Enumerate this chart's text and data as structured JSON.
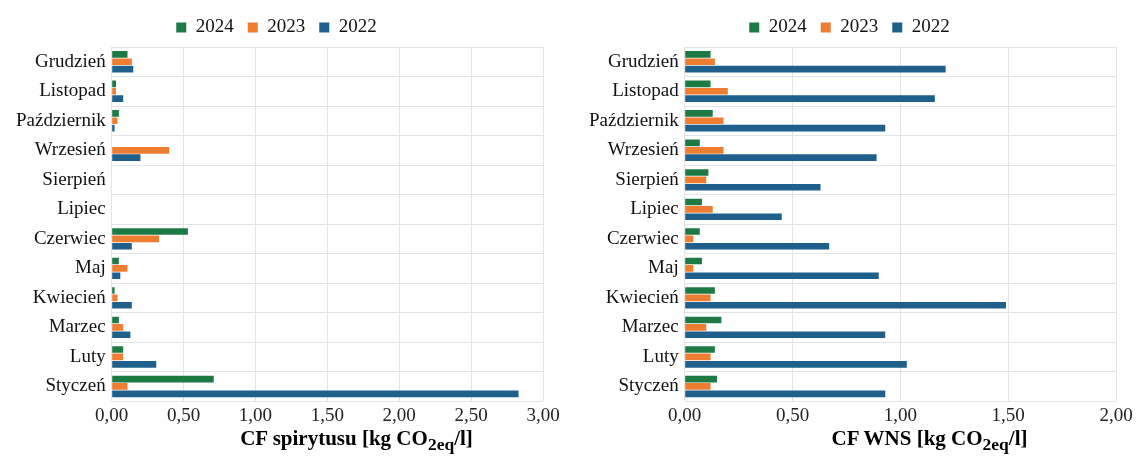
{
  "chart_data": [
    {
      "type": "bar",
      "orientation": "horizontal",
      "xlabel": "CF spirytusu [kg CO$_{2eq}$/l]",
      "categories": [
        "Grudzień",
        "Listopad",
        "Październik",
        "Wrzesień",
        "Sierpień",
        "Lipiec",
        "Czerwiec",
        "Maj",
        "Kwiecień",
        "Marzec",
        "Luty",
        "Styczeń"
      ],
      "series": [
        {
          "name": "2024",
          "color": "#1e7a45",
          "values": [
            0.11,
            0.03,
            0.05,
            null,
            null,
            null,
            0.53,
            0.05,
            0.02,
            0.05,
            0.08,
            0.71
          ]
        },
        {
          "name": "2023",
          "color": "#ed7d31",
          "values": [
            0.14,
            0.03,
            0.04,
            0.4,
            null,
            null,
            0.33,
            0.11,
            0.04,
            0.08,
            0.08,
            0.11
          ]
        },
        {
          "name": "2022",
          "color": "#1f5f8b",
          "values": [
            0.15,
            0.08,
            0.02,
            0.2,
            null,
            null,
            0.14,
            0.06,
            0.14,
            0.13,
            0.31,
            2.83
          ]
        }
      ],
      "xlim": [
        0,
        3
      ],
      "xticks": [
        {
          "value": 0,
          "label": "0,00"
        },
        {
          "value": 0.5,
          "label": "0,50"
        },
        {
          "value": 1,
          "label": "1,00"
        },
        {
          "value": 1.5,
          "label": "1,50"
        },
        {
          "value": 2,
          "label": "2,00"
        },
        {
          "value": 2.5,
          "label": "2,50"
        },
        {
          "value": 3,
          "label": "3,00"
        }
      ],
      "grid": true,
      "legend": "top"
    },
    {
      "type": "bar",
      "orientation": "horizontal",
      "xlabel": "CF WNS [kg CO$_{2eq}$/l]",
      "categories": [
        "Grudzień",
        "Listopad",
        "Październik",
        "Wrzesień",
        "Sierpień",
        "Lipiec",
        "Czerwiec",
        "Maj",
        "Kwiecień",
        "Marzec",
        "Luty",
        "Styczeń"
      ],
      "series": [
        {
          "name": "2024",
          "color": "#1e7a45",
          "values": [
            0.12,
            0.12,
            0.13,
            0.07,
            0.11,
            0.08,
            0.07,
            0.08,
            0.14,
            0.17,
            0.14,
            0.15
          ]
        },
        {
          "name": "2023",
          "color": "#ed7d31",
          "values": [
            0.14,
            0.2,
            0.18,
            0.18,
            0.1,
            0.13,
            0.04,
            0.04,
            0.12,
            0.1,
            0.12,
            0.12
          ]
        },
        {
          "name": "2022",
          "color": "#1f5f8b",
          "values": [
            1.21,
            1.16,
            0.93,
            0.89,
            0.63,
            0.45,
            0.67,
            0.9,
            1.49,
            0.93,
            1.03,
            0.93
          ]
        }
      ],
      "xlim": [
        0,
        2
      ],
      "xticks": [
        {
          "value": 0,
          "label": "0,00"
        },
        {
          "value": 0.5,
          "label": "0,50"
        },
        {
          "value": 1,
          "label": "1,00"
        },
        {
          "value": 1.5,
          "label": "1,50"
        },
        {
          "value": 2,
          "label": "2,00"
        }
      ],
      "grid": true,
      "legend": "top"
    }
  ]
}
